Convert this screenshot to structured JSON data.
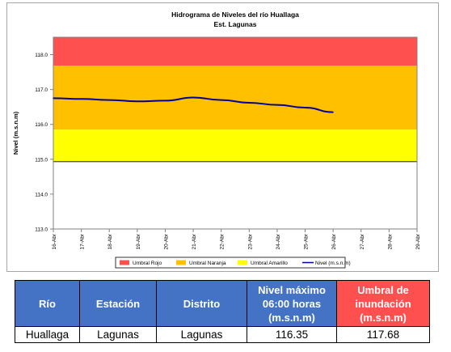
{
  "chart_data": {
    "type": "line",
    "title": "Hidrograma de Niveles del río Huallaga",
    "subtitle": "Est. Lagunas",
    "ylabel": "Nivel (m.s.n.m)",
    "ylim": [
      113.0,
      118.5
    ],
    "yticks": [
      "113.0",
      "114.0",
      "115.0",
      "116.0",
      "117.0",
      "118.0"
    ],
    "xlim": [
      0,
      13
    ],
    "x_ticks": [
      "16-Abr",
      "17-Abr",
      "18-Abr",
      "19-Abr",
      "20-Abr",
      "21-Abr",
      "22-Abr",
      "23-Abr",
      "24-Abr",
      "25-Abr",
      "26-Abr",
      "27-Abr",
      "28-Abr",
      "29-Abr"
    ],
    "bands": [
      {
        "name": "Umbral Rojo",
        "from": 117.68,
        "to": 118.5,
        "color": "#ff5050"
      },
      {
        "name": "Umbral Naranja",
        "from": 115.85,
        "to": 117.68,
        "color": "#ffc000"
      },
      {
        "name": "Umbral Amarillo",
        "from": 114.93,
        "to": 115.85,
        "color": "#ffff00"
      }
    ],
    "series": [
      {
        "name": "Nivel (m.s.n.m)",
        "color": "#000099",
        "x": [
          "16-Abr",
          "17-Abr",
          "18-Abr",
          "19-Abr",
          "20-Abr",
          "21-Abr",
          "22-Abr",
          "23-Abr",
          "24-Abr",
          "25-Abr",
          "26-Abr"
        ],
        "values": [
          116.75,
          116.73,
          116.7,
          116.66,
          116.68,
          116.77,
          116.7,
          116.62,
          116.56,
          116.48,
          116.35
        ]
      }
    ],
    "legend": [
      "Umbral Rojo",
      "Umbral Naranja",
      "Umbral Amarillo",
      "Nivel (m.s.n.m)"
    ],
    "legend_position": "bottom",
    "grid": false
  },
  "table": {
    "headers": [
      "Río",
      "Estación",
      "Distrito",
      "Nivel máximo 06:00 horas (m.s.n.m)",
      "Umbral de inundación (m.s.n.m)"
    ],
    "row": [
      "Huallaga",
      "Lagunas",
      "Lagunas",
      "116.35",
      "117.68"
    ]
  }
}
